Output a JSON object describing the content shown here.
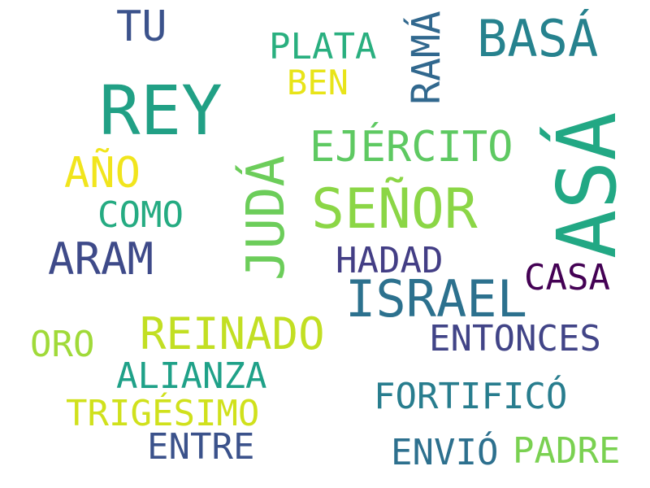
{
  "words": [
    {
      "text": "REY",
      "color": "#21a085"
    },
    {
      "text": "ASÁ",
      "color": "#22a884"
    },
    {
      "text": "SEÑOR",
      "color": "#8bd646"
    },
    {
      "text": "JUDÁ",
      "color": "#6ccd5a"
    },
    {
      "text": "BASÁ",
      "color": "#26828e"
    },
    {
      "text": "ISRAEL",
      "color": "#2c718e"
    },
    {
      "text": "EJÉRCITO",
      "color": "#5ec962"
    },
    {
      "text": "REINADO",
      "color": "#c2df23"
    },
    {
      "text": "RAMÁ",
      "color": "#31688e"
    },
    {
      "text": "ARAM",
      "color": "#3e4a89"
    },
    {
      "text": "AÑO",
      "color": "#f1e51d"
    },
    {
      "text": "TU",
      "color": "#3b528b"
    },
    {
      "text": "PLATA",
      "color": "#29af7f"
    },
    {
      "text": "BEN",
      "color": "#e8e419"
    },
    {
      "text": "COMO",
      "color": "#25ab82"
    },
    {
      "text": "HADAD",
      "color": "#433e85"
    },
    {
      "text": "CASA",
      "color": "#440154"
    },
    {
      "text": "ENTONCES",
      "color": "#414487"
    },
    {
      "text": "ORO",
      "color": "#a0da39"
    },
    {
      "text": "ALIANZA",
      "color": "#1fa188"
    },
    {
      "text": "FORTIFICÓ",
      "color": "#287d8e"
    },
    {
      "text": "TRIGÉSIMO",
      "color": "#d0e11c"
    },
    {
      "text": "ENTRE",
      "color": "#3b528b"
    },
    {
      "text": "ENVIÓ",
      "color": "#2d708e"
    },
    {
      "text": "PADRE",
      "color": "#7ad151"
    }
  ]
}
